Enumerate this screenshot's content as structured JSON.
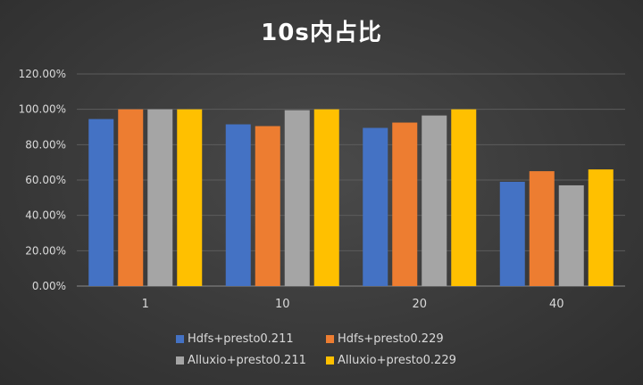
{
  "chart_data": {
    "type": "bar",
    "title": "10s内占比",
    "categories": [
      "1",
      "10",
      "20",
      "40"
    ],
    "ylim": [
      0,
      120
    ],
    "ytick_step": 20,
    "ytick_labels": [
      "0.00%",
      "20.00%",
      "40.00%",
      "60.00%",
      "80.00%",
      "100.00%",
      "120.00%"
    ],
    "grid": true,
    "legend_position": "bottom",
    "series": [
      {
        "name": "Hdfs+presto0.211",
        "color": "#4472c4",
        "values": [
          94.5,
          91.5,
          89.5,
          59
        ]
      },
      {
        "name": "Hdfs+presto0.229",
        "color": "#ed7d31",
        "values": [
          100,
          90.5,
          92.5,
          65
        ]
      },
      {
        "name": "Alluxio+presto0.211",
        "color": "#a5a5a5",
        "values": [
          100,
          99.5,
          96.5,
          57
        ]
      },
      {
        "name": "Alluxio+presto0.229",
        "color": "#ffc000",
        "values": [
          100,
          100,
          100,
          66
        ]
      }
    ]
  }
}
